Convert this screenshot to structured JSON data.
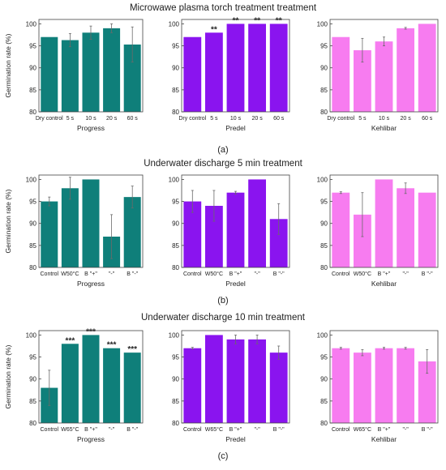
{
  "colors": {
    "Progress": "#0f7f7a",
    "Predel": "#8a14ef",
    "Kehlibar": "#f77cf0",
    "frame": "#444444",
    "errorbar": "#6a6a6a"
  },
  "ylabel": "Germination rate (%)",
  "yticks": [
    80,
    85,
    90,
    95,
    100
  ],
  "chart_data": [
    {
      "title": "Microwawe plasma torch treatment treatment",
      "panel_label": "(a)",
      "type": "bar",
      "ylim": [
        80,
        101
      ],
      "ylabel": "Germination rate (%)",
      "categories": [
        "Dry control",
        "5 s",
        "10 s",
        "20 s",
        "60 s"
      ],
      "series": [
        {
          "name": "Progress",
          "values": [
            97,
            96.3,
            98,
            99,
            95.3
          ],
          "errors": [
            0,
            1.5,
            1.5,
            1,
            4
          ],
          "significance": [
            "",
            "",
            "",
            "",
            ""
          ]
        },
        {
          "name": "Predel",
          "values": [
            97,
            98,
            100,
            100,
            100
          ],
          "errors": [
            0,
            0,
            0,
            0,
            0
          ],
          "significance": [
            "",
            "**",
            "**",
            "**",
            "**"
          ]
        },
        {
          "name": "Kehlibar",
          "values": [
            97,
            94,
            96,
            99,
            100
          ],
          "errors": [
            0,
            2.7,
            1,
            0.2,
            0
          ],
          "significance": [
            "",
            "",
            "",
            "",
            ""
          ]
        }
      ]
    },
    {
      "title": "Underwater discharge 5 min treatment",
      "panel_label": "(b)",
      "type": "bar",
      "ylim": [
        80,
        101
      ],
      "ylabel": "Germination rate (%)",
      "categories": [
        "Control",
        "W50°C",
        "B \"+\"",
        "\"-\"",
        "B \"-\""
      ],
      "series": [
        {
          "name": "Progress",
          "values": [
            95,
            98,
            100,
            87,
            96
          ],
          "errors": [
            1,
            2.5,
            0,
            5,
            2.5
          ],
          "significance": [
            "",
            "",
            "",
            "",
            ""
          ]
        },
        {
          "name": "Predel",
          "values": [
            95,
            94,
            97,
            100,
            91
          ],
          "errors": [
            2.5,
            3.5,
            0.3,
            0,
            3.5
          ],
          "significance": [
            "",
            "",
            "",
            "",
            ""
          ]
        },
        {
          "name": "Kehlibar",
          "values": [
            97,
            92,
            100,
            98,
            97
          ],
          "errors": [
            0.2,
            5,
            0,
            1.2,
            0
          ],
          "significance": [
            "",
            "",
            "",
            "",
            ""
          ]
        }
      ]
    },
    {
      "title": "Underwater discharge 10 min treatment",
      "panel_label": "(c)",
      "type": "bar",
      "ylim": [
        80,
        101
      ],
      "ylabel": "Germination rate (%)",
      "categories": [
        "Control",
        "W65°C",
        "B \"+\"",
        "\"-\"",
        "B \"-\""
      ],
      "series": [
        {
          "name": "Progress",
          "values": [
            88,
            98,
            100,
            97,
            96
          ],
          "errors": [
            4,
            0,
            0,
            0,
            0
          ],
          "significance": [
            "",
            "***",
            "***",
            "***",
            "***"
          ]
        },
        {
          "name": "Predel",
          "values": [
            97,
            100,
            99,
            99,
            96
          ],
          "errors": [
            0.2,
            0,
            1,
            1,
            1.5
          ],
          "significance": [
            "",
            "",
            "",
            "",
            ""
          ]
        },
        {
          "name": "Kehlibar",
          "values": [
            97,
            96,
            97,
            97,
            94
          ],
          "errors": [
            0.2,
            0.7,
            0.2,
            0.2,
            2.7
          ],
          "significance": [
            "",
            "",
            "",
            "",
            ""
          ]
        }
      ]
    }
  ]
}
